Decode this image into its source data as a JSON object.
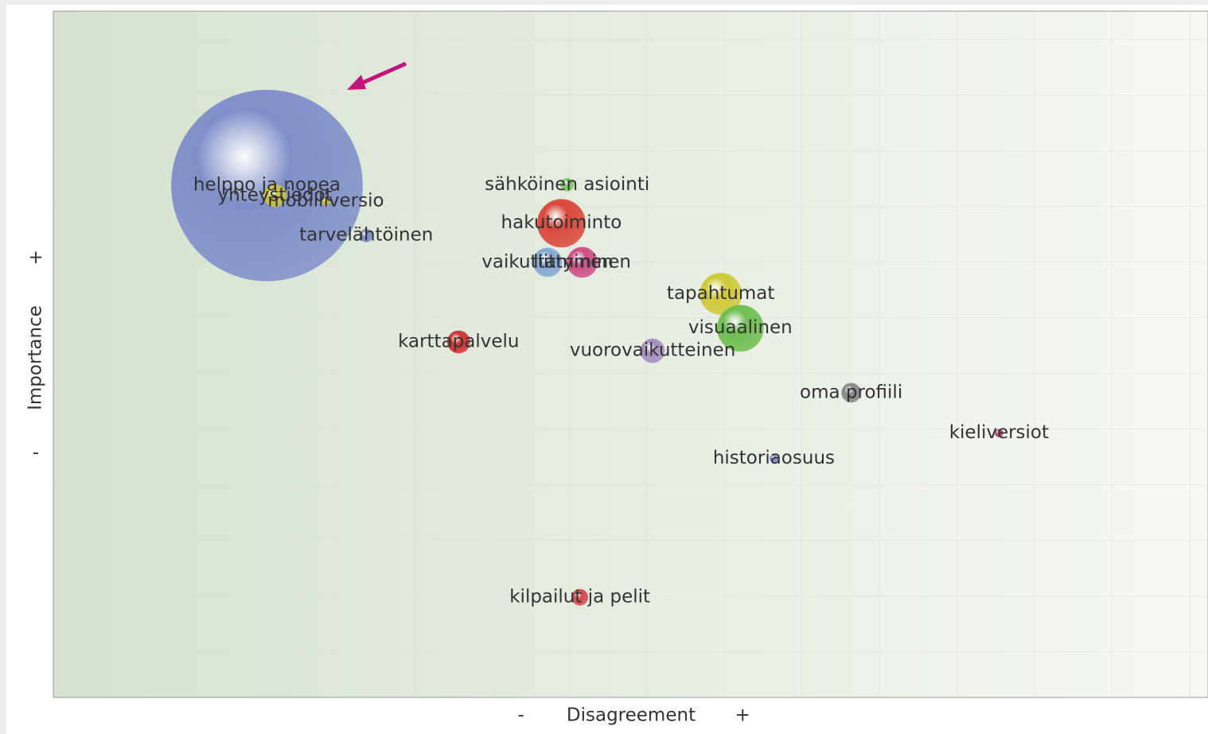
{
  "chart_data": {
    "type": "scatter",
    "xlabel": "Disagreement",
    "ylabel": "Importance",
    "xlim": [
      0,
      100
    ],
    "ylim": [
      0,
      100
    ],
    "xticks": [
      {
        "value": 40.5,
        "label": "-"
      },
      {
        "value": 59.7,
        "label": "+"
      }
    ],
    "yticks": [
      {
        "value": 35.6,
        "label": "-"
      },
      {
        "value": 64.0,
        "label": "+"
      }
    ],
    "grid": true,
    "series": [
      {
        "names": [
          "helppo ja nopea",
          "yhteystiedot",
          "mobiiliversio",
          "tarvelähtöinen",
          "sähköinen asiointi",
          "hakutoiminto",
          "vaikuttaminen",
          "liittyminen",
          "tapahtumat",
          "visuaalinen",
          "karttapalvelu",
          "vuorovaikutteinen",
          "oma profiili",
          "kieliversiot",
          "historiaosuus",
          "kilpailut ja pelit"
        ],
        "x": [
          18.5,
          19.2,
          23.6,
          27.1,
          44.5,
          44.0,
          42.8,
          45.8,
          57.8,
          59.5,
          35.1,
          51.9,
          69.1,
          81.9,
          62.4,
          45.6
        ],
        "y": [
          74.6,
          73.1,
          72.3,
          67.3,
          74.7,
          69.1,
          63.4,
          63.4,
          58.8,
          53.8,
          51.8,
          50.5,
          44.4,
          38.5,
          34.8,
          14.6
        ],
        "size": [
          120,
          14,
          5,
          8,
          8,
          30,
          18,
          19,
          26,
          29,
          14,
          15,
          12,
          5,
          5,
          10
        ],
        "colors": [
          "#7f8fc9",
          "#c9c23c",
          "#c9c23c",
          "#7f8fc9",
          "#7fc46a",
          "#d9493c",
          "#85a9d6",
          "#cf4f86",
          "#cfc93a",
          "#6fbf52",
          "#cf3434",
          "#a58fbe",
          "#888888",
          "#c44b7a",
          "#7f8fc9",
          "#d54a4a"
        ]
      }
    ]
  }
}
